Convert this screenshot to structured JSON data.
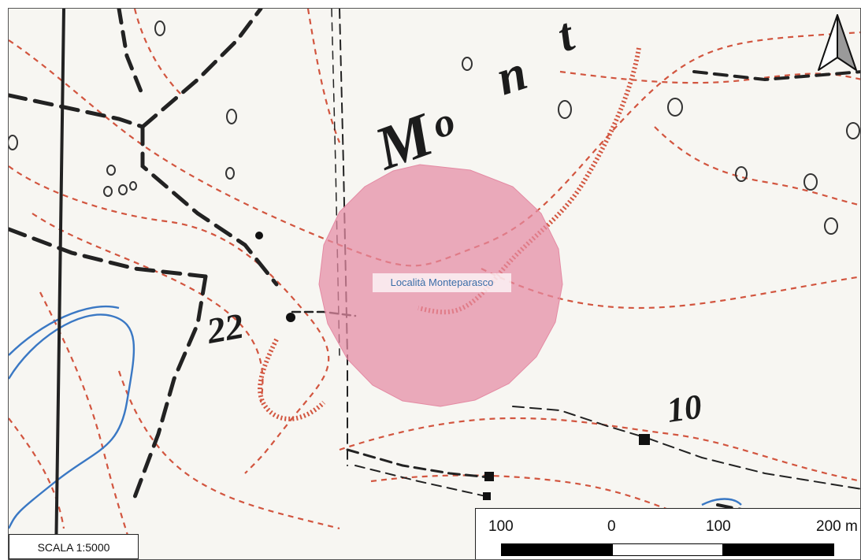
{
  "map": {
    "place_label": "Località Monteparasco",
    "scale_text": "SCALA 1:5000",
    "scale_bar": {
      "ticks": [
        "100",
        "0",
        "100",
        "200 m"
      ],
      "segments": [
        {
          "from_m": -100,
          "to_m": 0,
          "fill": "#000000"
        },
        {
          "from_m": 0,
          "to_m": 100,
          "fill": "#ffffff"
        },
        {
          "from_m": 100,
          "to_m": 200,
          "fill": "#000000"
        }
      ]
    },
    "spot_heights": [
      "22",
      "10"
    ],
    "map_lettering": [
      "M",
      "o",
      "n",
      "t"
    ],
    "north_arrow": "north-arrow-icon",
    "colors": {
      "area_fill": "#e48aa3",
      "contour": "#d2553f",
      "stream": "#3a78c4",
      "track": "#222222",
      "label_text": "#3b6ea8"
    }
  }
}
